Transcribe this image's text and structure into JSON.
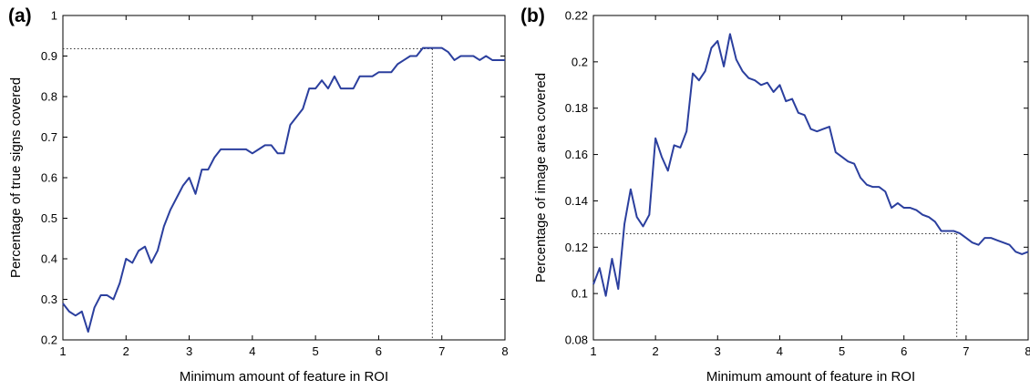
{
  "chart_data": [
    {
      "type": "line",
      "panel_label": "(a)",
      "xlabel": "Minimum amount of feature in ROI",
      "ylabel": "Percentage of true signs covered",
      "xlim": [
        1,
        8
      ],
      "ylim": [
        0.2,
        1
      ],
      "xticks": [
        "1",
        "2",
        "3",
        "4",
        "5",
        "6",
        "7",
        "8"
      ],
      "yticks": [
        "0.2",
        "0.3",
        "0.4",
        "0.5",
        "0.6",
        "0.7",
        "0.8",
        "0.9",
        "1"
      ],
      "grid": false,
      "color": "#2b3f9e",
      "reference": {
        "x": 6.85,
        "y": 0.918
      },
      "series": [
        {
          "x": [
            1.0,
            1.1,
            1.2,
            1.3,
            1.4,
            1.5,
            1.6,
            1.7,
            1.8,
            1.9,
            2.0,
            2.1,
            2.2,
            2.3,
            2.4,
            2.5,
            2.6,
            2.7,
            2.8,
            2.9,
            3.0,
            3.1,
            3.2,
            3.3,
            3.4,
            3.5,
            3.6,
            3.7,
            3.8,
            3.9,
            4.0,
            4.1,
            4.2,
            4.3,
            4.4,
            4.5,
            4.6,
            4.7,
            4.8,
            4.9,
            5.0,
            5.1,
            5.2,
            5.3,
            5.4,
            5.5,
            5.6,
            5.7,
            5.8,
            5.9,
            6.0,
            6.1,
            6.2,
            6.3,
            6.4,
            6.5,
            6.6,
            6.7,
            6.8,
            6.9,
            7.0,
            7.1,
            7.2,
            7.3,
            7.4,
            7.5,
            7.6,
            7.7,
            7.8,
            7.9,
            8.0
          ],
          "values": [
            0.29,
            0.27,
            0.26,
            0.27,
            0.22,
            0.28,
            0.31,
            0.31,
            0.3,
            0.34,
            0.4,
            0.39,
            0.42,
            0.43,
            0.39,
            0.42,
            0.48,
            0.52,
            0.55,
            0.58,
            0.6,
            0.56,
            0.62,
            0.62,
            0.65,
            0.67,
            0.67,
            0.67,
            0.67,
            0.67,
            0.66,
            0.67,
            0.68,
            0.68,
            0.66,
            0.66,
            0.73,
            0.75,
            0.77,
            0.82,
            0.82,
            0.84,
            0.82,
            0.85,
            0.82,
            0.82,
            0.82,
            0.85,
            0.85,
            0.85,
            0.86,
            0.86,
            0.86,
            0.88,
            0.89,
            0.9,
            0.9,
            0.92,
            0.92,
            0.92,
            0.92,
            0.91,
            0.89,
            0.9,
            0.9,
            0.9,
            0.89,
            0.9,
            0.89,
            0.89,
            0.89
          ]
        }
      ]
    },
    {
      "type": "line",
      "panel_label": "(b)",
      "xlabel": "Minimum amount of feature in ROI",
      "ylabel": "Percentage of image area covered",
      "xlim": [
        1,
        8
      ],
      "ylim": [
        0.08,
        0.22
      ],
      "xticks": [
        "1",
        "2",
        "3",
        "4",
        "5",
        "6",
        "7",
        "8"
      ],
      "yticks": [
        "0.08",
        "0.1",
        "0.12",
        "0.14",
        "0.16",
        "0.18",
        "0.2",
        "0.22"
      ],
      "grid": false,
      "color": "#2b3f9e",
      "reference": {
        "x": 6.85,
        "y": 0.1258
      },
      "series": [
        {
          "x": [
            1.0,
            1.1,
            1.2,
            1.3,
            1.4,
            1.5,
            1.6,
            1.7,
            1.8,
            1.9,
            2.0,
            2.1,
            2.2,
            2.3,
            2.4,
            2.5,
            2.6,
            2.7,
            2.8,
            2.9,
            3.0,
            3.1,
            3.2,
            3.3,
            3.4,
            3.5,
            3.6,
            3.7,
            3.8,
            3.9,
            4.0,
            4.1,
            4.2,
            4.3,
            4.4,
            4.5,
            4.6,
            4.7,
            4.8,
            4.9,
            5.0,
            5.1,
            5.2,
            5.3,
            5.4,
            5.5,
            5.6,
            5.7,
            5.8,
            5.9,
            6.0,
            6.1,
            6.2,
            6.3,
            6.4,
            6.5,
            6.6,
            6.7,
            6.8,
            6.9,
            7.0,
            7.1,
            7.2,
            7.3,
            7.4,
            7.5,
            7.6,
            7.7,
            7.8,
            7.9,
            8.0
          ],
          "values": [
            0.104,
            0.111,
            0.099,
            0.115,
            0.102,
            0.13,
            0.145,
            0.133,
            0.129,
            0.134,
            0.167,
            0.159,
            0.153,
            0.164,
            0.163,
            0.17,
            0.195,
            0.192,
            0.196,
            0.206,
            0.209,
            0.198,
            0.212,
            0.201,
            0.196,
            0.193,
            0.192,
            0.19,
            0.191,
            0.187,
            0.19,
            0.183,
            0.184,
            0.178,
            0.177,
            0.171,
            0.17,
            0.171,
            0.172,
            0.161,
            0.159,
            0.157,
            0.156,
            0.15,
            0.147,
            0.146,
            0.146,
            0.144,
            0.137,
            0.139,
            0.137,
            0.137,
            0.136,
            0.134,
            0.133,
            0.131,
            0.127,
            0.127,
            0.127,
            0.126,
            0.124,
            0.122,
            0.121,
            0.124,
            0.124,
            0.123,
            0.122,
            0.121,
            0.118,
            0.117,
            0.118
          ]
        }
      ]
    }
  ]
}
